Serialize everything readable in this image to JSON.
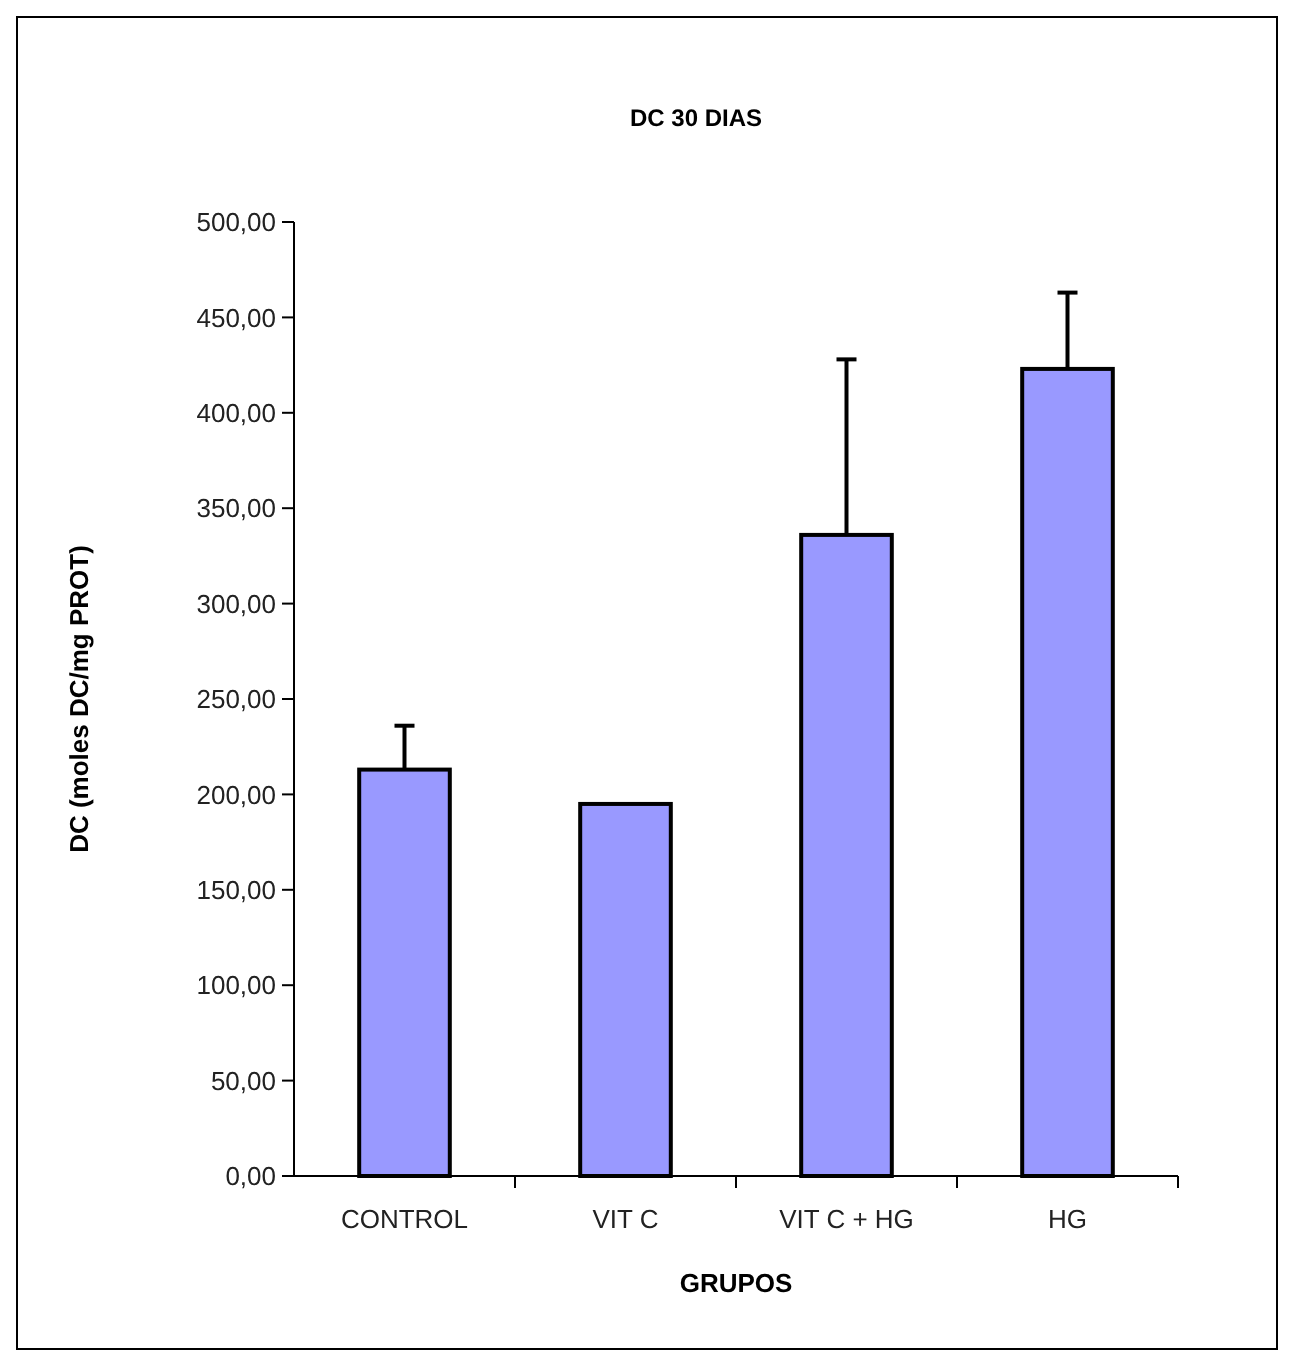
{
  "chart_data": {
    "type": "bar",
    "title": "DC 30 DIAS",
    "xlabel": "GRUPOS",
    "ylabel": "DC (moles DC/mg PROT)",
    "categories": [
      "CONTROL",
      "VIT C",
      "VIT C + HG",
      "HG"
    ],
    "values": [
      213,
      195,
      336,
      423
    ],
    "errors": [
      [
        213,
        236
      ],
      null,
      [
        336,
        428
      ],
      [
        423,
        463
      ]
    ],
    "color": "#9999ff",
    "ylim": [
      0,
      500
    ],
    "yticks": [
      {
        "value": 0,
        "label": "0,00"
      },
      {
        "value": 50,
        "label": "50,00"
      },
      {
        "value": 100,
        "label": "100,00"
      },
      {
        "value": 150,
        "label": "150,00"
      },
      {
        "value": 200,
        "label": "200,00"
      },
      {
        "value": 250,
        "label": "250,00"
      },
      {
        "value": 300,
        "label": "300,00"
      },
      {
        "value": 350,
        "label": "350,00"
      },
      {
        "value": 400,
        "label": "400,00"
      },
      {
        "value": 450,
        "label": "450,00"
      },
      {
        "value": 500,
        "label": "500,00"
      }
    ],
    "grid": false
  }
}
